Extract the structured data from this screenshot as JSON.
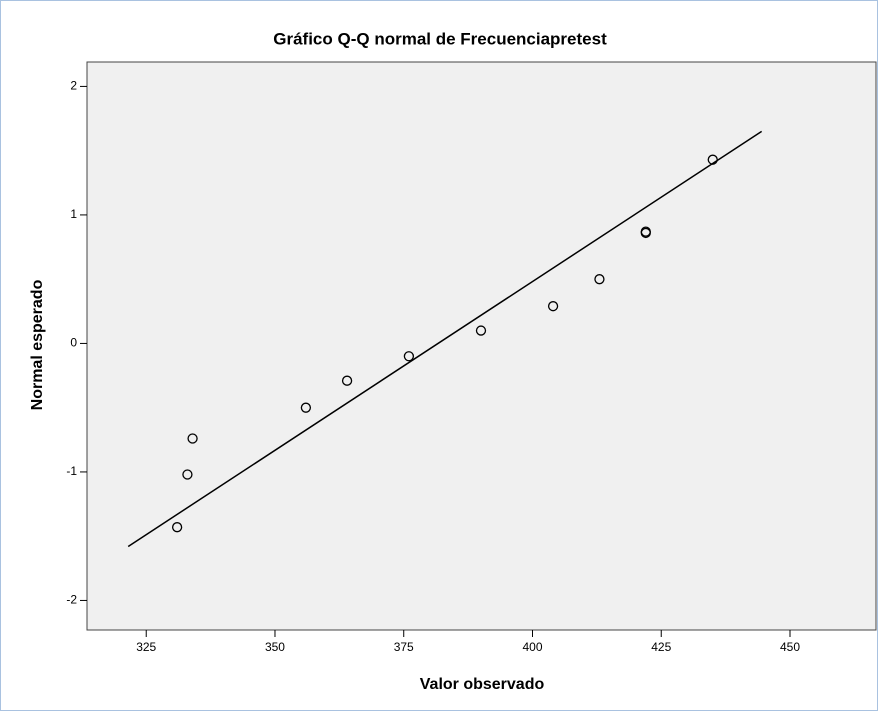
{
  "chart_data": {
    "type": "scatter",
    "title": "Gráfico Q-Q normal de Frecuenciapretest",
    "x_label": "Valor observado",
    "y_label": "Normal esperado",
    "x": [
      331,
      333,
      334,
      356,
      364,
      376,
      390,
      404,
      413,
      422,
      422,
      435
    ],
    "values": [
      -1.43,
      -1.02,
      -0.74,
      -0.5,
      -0.29,
      -0.1,
      0.1,
      0.29,
      0.5,
      0.86,
      0.87,
      1.43
    ],
    "color": "#000000",
    "background": "#f0f0f0",
    "reference_line": {
      "x": [
        321.5,
        444.5
      ],
      "y": [
        -1.58,
        1.65
      ],
      "color": "#000000"
    },
    "xlim": [
      313.5,
      466.7
    ],
    "ylim": [
      -2.23,
      2.19
    ],
    "xticks": [
      325,
      350,
      375,
      400,
      425,
      450
    ],
    "yticks": [
      -2,
      -1,
      0,
      1,
      2
    ],
    "grid": false
  }
}
